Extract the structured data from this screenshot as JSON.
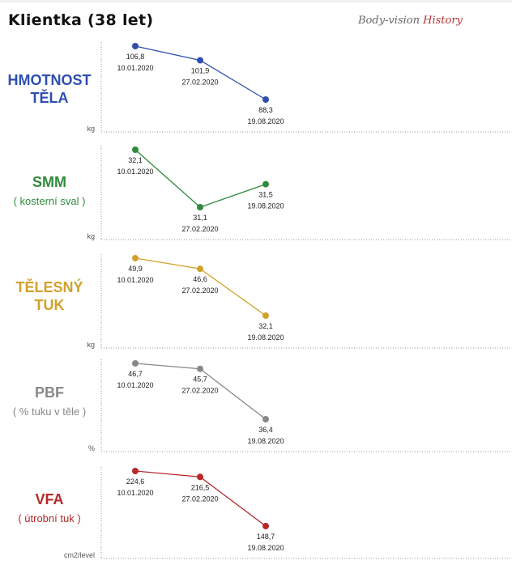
{
  "header": {
    "title": "Klientka (38 let)",
    "brand_part1": "Body-vision",
    "brand_part2": "History"
  },
  "colors": {
    "weight": "#2f4fae",
    "smm": "#2f8a3e",
    "fat": "#d2a12c",
    "pbf": "#888888",
    "vfa": "#b72a2a"
  },
  "chart_data": [
    {
      "type": "line",
      "title": "HMOTNOST TĚLA",
      "subtitle": "",
      "ylabel": "kg",
      "categories": [
        "10.01.2020",
        "27.02.2020",
        "19.08.2020"
      ],
      "values": [
        106.8,
        101.9,
        88.3
      ],
      "value_labels": [
        "106,8",
        "101,9",
        "88,3"
      ],
      "color": "#2f4fae",
      "grid": false
    },
    {
      "type": "line",
      "title": "SMM",
      "subtitle": "( kosterní sval )",
      "ylabel": "kg",
      "categories": [
        "10.01.2020",
        "27.02.2020",
        "19.08.2020"
      ],
      "values": [
        32.1,
        31.1,
        31.5
      ],
      "value_labels": [
        "32,1",
        "31,1",
        "31,5"
      ],
      "color": "#2f8a3e",
      "grid": false
    },
    {
      "type": "line",
      "title": "TĚLESNÝ TUK",
      "subtitle": "",
      "ylabel": "kg",
      "categories": [
        "10.01.2020",
        "27.02.2020",
        "19.08.2020"
      ],
      "values": [
        49.9,
        46.6,
        32.1
      ],
      "value_labels": [
        "49,9",
        "46,6",
        "32,1"
      ],
      "color": "#d2a12c",
      "grid": false
    },
    {
      "type": "line",
      "title": "PBF",
      "subtitle": "( % tuku v těle )",
      "ylabel": "%",
      "categories": [
        "10.01.2020",
        "27.02.2020",
        "19.08.2020"
      ],
      "values": [
        46.7,
        45.7,
        36.4
      ],
      "value_labels": [
        "46,7",
        "45,7",
        "36,4"
      ],
      "color": "#888888",
      "grid": false
    },
    {
      "type": "line",
      "title": "VFA",
      "subtitle": "( útrobní tuk )",
      "ylabel": "cm2/level",
      "categories": [
        "10.01.2020",
        "27.02.2020",
        "19.08.2020"
      ],
      "values": [
        224.6,
        216.5,
        148.7
      ],
      "value_labels": [
        "224,6",
        "216,5",
        "148,7"
      ],
      "color": "#b72a2a",
      "grid": false
    }
  ]
}
